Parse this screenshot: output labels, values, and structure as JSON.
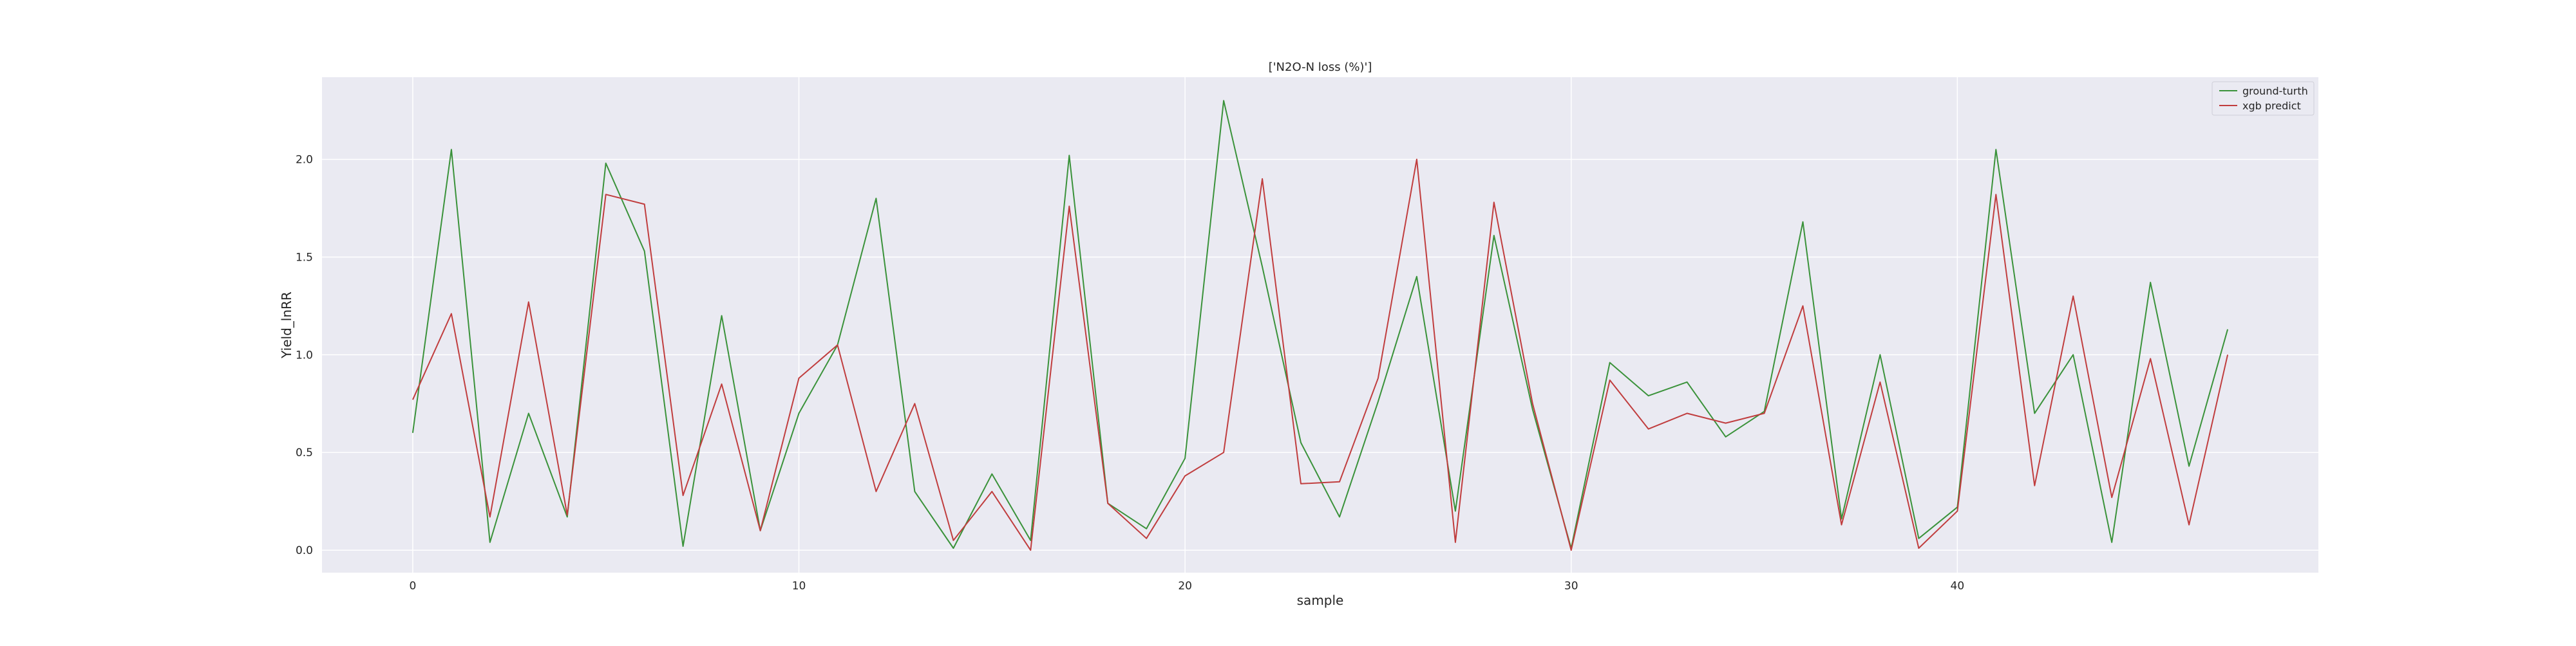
{
  "chart_data": {
    "type": "line",
    "title": "['N2O-N loss (%)']",
    "xlabel": "sample",
    "ylabel": "Yield_lnRR",
    "xlim": [
      -2.35,
      49.35
    ],
    "ylim": [
      -0.115,
      2.42
    ],
    "xticks": [
      0,
      10,
      20,
      30,
      40
    ],
    "yticks": [
      0.0,
      0.5,
      1.0,
      1.5,
      2.0
    ],
    "ytick_labels": [
      "0.0",
      "0.5",
      "1.0",
      "1.5",
      "2.0"
    ],
    "grid": true,
    "legend_position": "top-right",
    "x": [
      0,
      1,
      2,
      3,
      4,
      5,
      6,
      7,
      8,
      9,
      10,
      11,
      12,
      13,
      14,
      15,
      16,
      17,
      18,
      19,
      20,
      21,
      22,
      23,
      24,
      25,
      26,
      27,
      28,
      29,
      30,
      31,
      32,
      33,
      34,
      35,
      36,
      37,
      38,
      39,
      40,
      41,
      42,
      43,
      44,
      45,
      46,
      47
    ],
    "series": [
      {
        "name": "ground-turth",
        "color": "#3a923a",
        "values": [
          0.6,
          2.05,
          0.04,
          0.7,
          0.17,
          1.98,
          1.53,
          0.02,
          1.2,
          0.1,
          0.7,
          1.05,
          1.8,
          0.3,
          0.01,
          0.39,
          0.05,
          2.02,
          0.24,
          0.11,
          0.47,
          2.3,
          1.45,
          0.55,
          0.17,
          0.76,
          1.4,
          0.2,
          1.61,
          0.72,
          0.01,
          0.96,
          0.79,
          0.86,
          0.58,
          0.71,
          1.68,
          0.16,
          1.0,
          0.06,
          0.22,
          2.05,
          0.7,
          1.0,
          0.04,
          1.37,
          0.43,
          1.13
        ]
      },
      {
        "name": "xgb predict",
        "color": "#c03d3e",
        "values": [
          0.77,
          1.21,
          0.17,
          1.27,
          0.18,
          1.82,
          1.77,
          0.28,
          0.85,
          0.1,
          0.88,
          1.05,
          0.3,
          0.75,
          0.05,
          0.3,
          0.0,
          1.76,
          0.24,
          0.06,
          0.38,
          0.5,
          1.9,
          0.34,
          0.35,
          0.88,
          2.0,
          0.04,
          1.78,
          0.75,
          0.0,
          0.87,
          0.62,
          0.7,
          0.65,
          0.7,
          1.25,
          0.13,
          0.86,
          0.01,
          0.2,
          1.82,
          0.33,
          1.3,
          0.27,
          0.98,
          0.13,
          1.0
        ]
      }
    ]
  }
}
